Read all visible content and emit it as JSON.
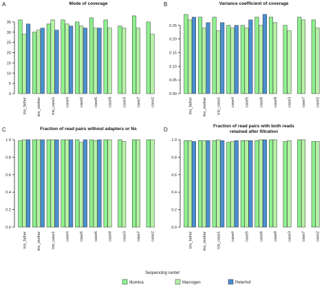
{
  "colors": {
    "Illumina": "#8ef08e",
    "Macrogen": "#b6f2a6",
    "Peterhof": "#4a90d0"
  },
  "legend": {
    "title": "Sequencing center:",
    "entries": [
      "Illumina",
      "Macrogen",
      "Peterhof"
    ]
  },
  "chart_data": [
    {
      "type": "bar",
      "letter": "A",
      "title": "Mode of coverage",
      "ylim": [
        0,
        40
      ],
      "yticks": [
        "0",
        "5",
        "10",
        "15",
        "20",
        "25",
        "30",
        "35"
      ],
      "ytick_values": [
        0,
        5,
        10,
        15,
        20,
        25,
        30,
        35
      ],
      "categories": [
        "trio_father",
        "trio_mother",
        "trio_case1",
        "case4",
        "case5",
        "case6",
        "case8",
        "case3",
        "case7",
        "case2"
      ],
      "series": [
        {
          "name": "Illumina",
          "values": [
            36,
            30,
            34,
            36,
            35,
            37,
            36,
            33,
            38,
            35
          ]
        },
        {
          "name": "Macrogen",
          "values": [
            29,
            31,
            36,
            34,
            33,
            32,
            32,
            32,
            32,
            29
          ]
        },
        {
          "name": "Peterhof",
          "values": [
            34,
            32,
            31,
            33,
            32,
            32,
            null,
            null,
            null,
            null
          ]
        }
      ]
    },
    {
      "type": "bar",
      "letter": "B",
      "title": "Variance coefficient of coverage",
      "ylim": [
        0,
        0.3
      ],
      "yticks": [
        "0.00",
        "0.05",
        "0.10",
        "0.15",
        "0.20",
        "0.25"
      ],
      "ytick_values": [
        0,
        0.05,
        0.1,
        0.15,
        0.2,
        0.25
      ],
      "categories": [
        "trio_father",
        "trio_mother",
        "trio_case1",
        "case4",
        "case5",
        "case6",
        "case8",
        "case3",
        "case7",
        "case2"
      ],
      "series": [
        {
          "name": "Illumina",
          "values": [
            0.29,
            0.28,
            0.28,
            0.25,
            0.25,
            0.28,
            0.28,
            0.25,
            0.28,
            0.27
          ]
        },
        {
          "name": "Macrogen",
          "values": [
            0.27,
            0.24,
            0.23,
            0.24,
            0.24,
            0.25,
            0.26,
            0.23,
            0.27,
            0.24
          ]
        },
        {
          "name": "Peterhof",
          "values": [
            0.28,
            0.26,
            0.26,
            0.25,
            0.27,
            0.29,
            null,
            null,
            null,
            null
          ]
        }
      ]
    },
    {
      "type": "bar",
      "letter": "C",
      "title": "Fraction of read pairs without adapters or Ns",
      "ylim": [
        0,
        1.0
      ],
      "yticks": [
        "0.0",
        "0.2",
        "0.4",
        "0.6",
        "0.8",
        "1.0"
      ],
      "ytick_values": [
        0,
        0.2,
        0.4,
        0.6,
        0.8,
        1.0
      ],
      "categories": [
        "trio_father",
        "trio_mother",
        "trio_case1",
        "case4",
        "case5",
        "case6",
        "case8",
        "case3",
        "case7",
        "case2"
      ],
      "series": [
        {
          "name": "Illumina",
          "values": [
            0.99,
            1.0,
            1.0,
            1.0,
            1.0,
            1.0,
            1.0,
            1.0,
            1.0,
            1.0
          ]
        },
        {
          "name": "Macrogen",
          "values": [
            1.0,
            1.0,
            1.0,
            1.0,
            0.97,
            0.99,
            1.0,
            0.98,
            1.0,
            1.0
          ]
        },
        {
          "name": "Peterhof",
          "values": [
            1.0,
            1.0,
            1.0,
            1.0,
            1.0,
            1.0,
            null,
            null,
            null,
            null
          ]
        }
      ]
    },
    {
      "type": "bar",
      "letter": "D",
      "title": "Fraction of read pairs with both reads\nretained after filtration",
      "ylim": [
        0,
        1.0
      ],
      "yticks": [
        "0.0",
        "0.2",
        "0.4",
        "0.6",
        "0.8",
        "1.0"
      ],
      "ytick_values": [
        0,
        0.2,
        0.4,
        0.6,
        0.8,
        1.0
      ],
      "categories": [
        "trio_father",
        "trio_mother",
        "trio_case1",
        "case4",
        "case5",
        "case6",
        "case8",
        "case3",
        "case7",
        "case2"
      ],
      "series": [
        {
          "name": "Illumina",
          "values": [
            0.99,
            0.99,
            0.99,
            0.97,
            0.99,
            0.99,
            1.0,
            0.98,
            1.0,
            0.98
          ]
        },
        {
          "name": "Macrogen",
          "values": [
            0.99,
            0.99,
            1.0,
            0.98,
            0.99,
            1.0,
            1.0,
            0.99,
            1.0,
            0.98
          ]
        },
        {
          "name": "Peterhof",
          "values": [
            0.98,
            0.99,
            0.99,
            0.99,
            0.99,
            1.0,
            null,
            null,
            null,
            null
          ]
        }
      ]
    }
  ]
}
